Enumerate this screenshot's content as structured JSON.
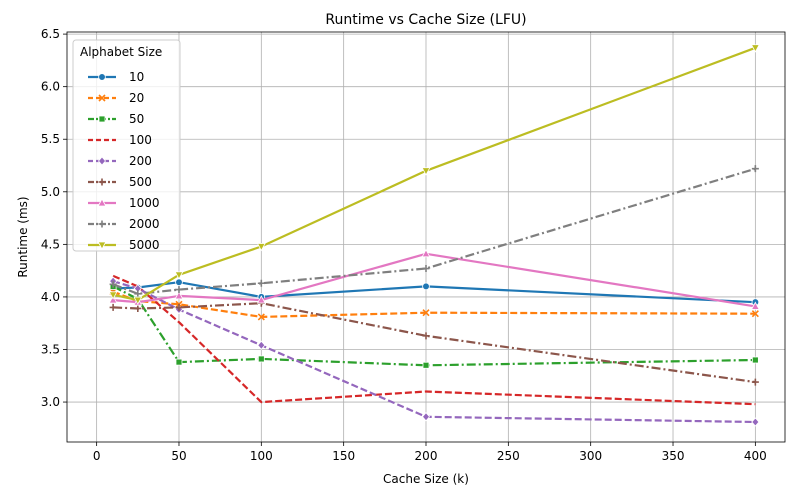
{
  "chart_data": {
    "type": "line",
    "title": "Runtime vs Cache Size (LFU)",
    "xlabel": "Cache Size (k)",
    "ylabel": "Runtime (ms)",
    "xlim": [
      -18,
      418
    ],
    "ylim": [
      2.62,
      6.52
    ],
    "x_ticks": [
      0,
      50,
      100,
      150,
      200,
      250,
      300,
      350,
      400
    ],
    "y_ticks": [
      3.0,
      3.5,
      4.0,
      4.5,
      5.0,
      5.5,
      6.0,
      6.5
    ],
    "x_tick_labels": [
      "0",
      "50",
      "100",
      "150",
      "200",
      "250",
      "300",
      "350",
      "400"
    ],
    "y_tick_labels": [
      "3.0",
      "3.5",
      "4.0",
      "4.5",
      "5.0",
      "5.5",
      "6.0",
      "6.5"
    ],
    "grid": true,
    "legend": {
      "title": "Alphabet Size",
      "placement": "upper-left"
    },
    "x": [
      10,
      25,
      50,
      100,
      200,
      400
    ],
    "series": [
      {
        "name": "10",
        "color": "#1f77b4",
        "dash": "solid",
        "marker": "circle",
        "values": [
          4.08,
          4.09,
          4.14,
          4.0,
          4.1,
          3.95
        ]
      },
      {
        "name": "20",
        "color": "#ff7f0e",
        "dash": "dashed",
        "marker": "x",
        "values": [
          4.05,
          3.96,
          3.93,
          3.81,
          3.85,
          3.84
        ]
      },
      {
        "name": "50",
        "color": "#2ca02c",
        "dash": "dashdot",
        "marker": "square",
        "values": [
          4.1,
          3.98,
          3.38,
          3.41,
          3.35,
          3.4
        ]
      },
      {
        "name": "100",
        "color": "#d62728",
        "dash": "dashed",
        "marker": "none",
        "values": [
          4.2,
          4.1,
          3.76,
          3.0,
          3.1,
          2.98
        ]
      },
      {
        "name": "200",
        "color": "#9467bd",
        "dash": "dashed",
        "marker": "diamond",
        "values": [
          4.15,
          4.08,
          3.88,
          3.54,
          2.86,
          2.81
        ]
      },
      {
        "name": "500",
        "color": "#8c564b",
        "dash": "dashdot",
        "marker": "plus",
        "values": [
          3.9,
          3.89,
          3.9,
          3.94,
          3.63,
          3.19
        ]
      },
      {
        "name": "1000",
        "color": "#e377c2",
        "dash": "solid",
        "marker": "triangle",
        "values": [
          3.97,
          3.95,
          4.01,
          3.97,
          4.41,
          3.91
        ]
      },
      {
        "name": "2000",
        "color": "#7f7f7f",
        "dash": "dashdot",
        "marker": "plus",
        "values": [
          4.12,
          4.03,
          4.07,
          4.13,
          4.27,
          5.22
        ]
      },
      {
        "name": "5000",
        "color": "#bcbd22",
        "dash": "solid",
        "marker": "triangle-down",
        "values": [
          4.02,
          3.97,
          4.21,
          4.48,
          5.2,
          6.37
        ]
      }
    ]
  }
}
